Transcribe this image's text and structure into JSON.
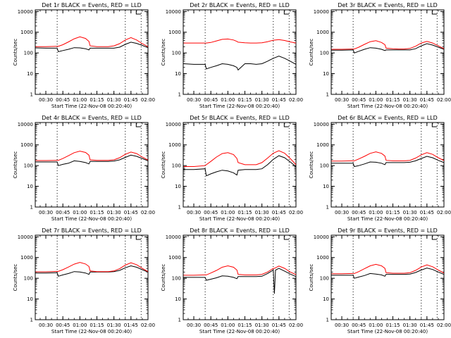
{
  "figure": {
    "x_tick_labels": [
      "00:30",
      "00:45",
      "01:00",
      "01:15",
      "01:30",
      "01:45",
      "02:00"
    ],
    "y_tick_labels": [
      "1",
      "10",
      "100",
      "1000",
      "10000"
    ],
    "colors": {
      "events": "#000000",
      "lld": "#ff0000",
      "axes": "#000000",
      "background": "#ffffff"
    }
  },
  "chart_data": [
    {
      "type": "line",
      "title": "Det 1r BLACK = Events, RED = LLD",
      "xlabel": "Start Time (22-Nov-08 00:20:40)",
      "ylabel": "Counts/sec",
      "y_scale": "log",
      "ylim": [
        1,
        12000
      ],
      "xlim": [
        "00:20:40",
        "02:00:00"
      ],
      "vlines": [
        "00:40",
        "01:40",
        "01:54"
      ],
      "x": [
        "00:21",
        "00:30",
        "00:40",
        "00:41",
        "00:45",
        "00:50",
        "00:55",
        "01:00",
        "01:05",
        "01:08",
        "01:09",
        "01:15",
        "01:20",
        "01:25",
        "01:30",
        "01:35",
        "01:40",
        "01:45",
        "01:50",
        "01:55",
        "02:00"
      ],
      "series": [
        {
          "name": "Events",
          "values": [
            175,
            170,
            170,
            115,
            130,
            150,
            180,
            175,
            160,
            140,
            170,
            170,
            170,
            170,
            170,
            190,
            260,
            330,
            290,
            230,
            180
          ]
        },
        {
          "name": "LLD",
          "values": [
            200,
            200,
            210,
            210,
            250,
            340,
            480,
            600,
            500,
            360,
            220,
            200,
            200,
            200,
            220,
            280,
            420,
            550,
            420,
            280,
            200
          ]
        }
      ]
    },
    {
      "type": "line",
      "title": "Det 2r BLACK = Events, RED = LLD",
      "xlabel": "Start Time (22-Nov-08 00:20:40)",
      "ylabel": "Counts/sec",
      "y_scale": "log",
      "ylim": [
        1,
        12000
      ],
      "xlim": [
        "00:20:40",
        "02:00:00"
      ],
      "vlines": [
        "00:40",
        "01:40",
        "01:54"
      ],
      "x": [
        "00:21",
        "00:30",
        "00:40",
        "00:41",
        "00:45",
        "00:50",
        "00:55",
        "01:00",
        "01:05",
        "01:08",
        "01:09",
        "01:15",
        "01:20",
        "01:25",
        "01:30",
        "01:35",
        "01:40",
        "01:45",
        "01:50",
        "01:55",
        "02:00"
      ],
      "series": [
        {
          "name": "Events",
          "values": [
            30,
            28,
            28,
            17,
            20,
            24,
            30,
            28,
            24,
            20,
            15,
            30,
            30,
            28,
            30,
            40,
            55,
            70,
            55,
            40,
            28
          ]
        },
        {
          "name": "LLD",
          "values": [
            300,
            300,
            300,
            300,
            320,
            380,
            450,
            470,
            420,
            360,
            330,
            310,
            300,
            300,
            310,
            350,
            410,
            440,
            400,
            340,
            300
          ]
        }
      ]
    },
    {
      "type": "line",
      "title": "Det 3r BLACK = Events, RED = LLD",
      "xlabel": "Start Time (22-Nov-08 00:20:40)",
      "ylabel": "Counts/sec",
      "y_scale": "log",
      "ylim": [
        1,
        12000
      ],
      "xlim": [
        "00:20:40",
        "02:00:00"
      ],
      "vlines": [
        "00:40",
        "01:40",
        "01:54"
      ],
      "x": [
        "00:21",
        "00:30",
        "00:40",
        "00:41",
        "00:45",
        "00:50",
        "00:55",
        "01:00",
        "01:05",
        "01:08",
        "01:09",
        "01:15",
        "01:20",
        "01:25",
        "01:30",
        "01:35",
        "01:40",
        "01:45",
        "01:50",
        "01:55",
        "02:00"
      ],
      "series": [
        {
          "name": "Events",
          "values": [
            135,
            135,
            140,
            100,
            120,
            150,
            180,
            170,
            150,
            130,
            140,
            140,
            140,
            140,
            140,
            160,
            220,
            280,
            240,
            190,
            150
          ]
        },
        {
          "name": "LLD",
          "values": [
            150,
            150,
            155,
            155,
            190,
            260,
            350,
            390,
            320,
            250,
            170,
            160,
            155,
            155,
            165,
            210,
            300,
            360,
            300,
            220,
            160
          ]
        }
      ]
    },
    {
      "type": "line",
      "title": "Det 4r BLACK = Events, RED = LLD",
      "xlabel": "Start Time (22-Nov-08 00:20:40)",
      "ylabel": "Counts/sec",
      "y_scale": "log",
      "ylim": [
        1,
        12000
      ],
      "xlim": [
        "00:20:40",
        "02:00:00"
      ],
      "vlines": [
        "00:40",
        "01:40",
        "01:54"
      ],
      "x": [
        "00:21",
        "00:30",
        "00:40",
        "00:41",
        "00:45",
        "00:50",
        "00:55",
        "01:00",
        "01:05",
        "01:08",
        "01:09",
        "01:15",
        "01:20",
        "01:25",
        "01:30",
        "01:35",
        "01:40",
        "01:45",
        "01:50",
        "01:55",
        "02:00"
      ],
      "series": [
        {
          "name": "Events",
          "values": [
            150,
            150,
            150,
            100,
            115,
            130,
            170,
            160,
            140,
            120,
            160,
            160,
            160,
            160,
            165,
            190,
            250,
            320,
            280,
            220,
            170
          ]
        },
        {
          "name": "LLD",
          "values": [
            175,
            175,
            180,
            180,
            220,
            300,
            420,
            500,
            430,
            320,
            190,
            180,
            180,
            180,
            190,
            240,
            350,
            450,
            380,
            260,
            185
          ]
        }
      ]
    },
    {
      "type": "line",
      "title": "Det 5r BLACK = Events, RED = LLD",
      "xlabel": "Start Time (22-Nov-08 00:20:40)",
      "ylabel": "Counts/sec",
      "y_scale": "log",
      "ylim": [
        1,
        12000
      ],
      "xlim": [
        "00:20:40",
        "02:00:00"
      ],
      "vlines": [
        "00:40",
        "01:40",
        "01:54"
      ],
      "x": [
        "00:21",
        "00:30",
        "00:40",
        "00:41",
        "00:45",
        "00:50",
        "00:55",
        "01:00",
        "01:05",
        "01:08",
        "01:09",
        "01:15",
        "01:20",
        "01:25",
        "01:30",
        "01:35",
        "01:40",
        "01:45",
        "01:50",
        "01:55",
        "02:00"
      ],
      "series": [
        {
          "name": "Events",
          "values": [
            65,
            65,
            70,
            32,
            40,
            50,
            60,
            55,
            45,
            35,
            60,
            65,
            65,
            65,
            70,
            110,
            200,
            300,
            240,
            150,
            90
          ]
        },
        {
          "name": "LLD",
          "values": [
            90,
            90,
            100,
            110,
            160,
            260,
            380,
            420,
            340,
            220,
            140,
            110,
            110,
            110,
            140,
            230,
            400,
            520,
            400,
            220,
            110
          ]
        }
      ]
    },
    {
      "type": "line",
      "title": "Det 6r BLACK = Events, RED = LLD",
      "xlabel": "Start Time (22-Nov-08 00:20:40)",
      "ylabel": "Counts/sec",
      "y_scale": "log",
      "ylim": [
        1,
        12000
      ],
      "xlim": [
        "00:20:40",
        "02:00:00"
      ],
      "vlines": [
        "00:40",
        "01:40",
        "01:54"
      ],
      "x": [
        "00:21",
        "00:30",
        "00:40",
        "00:41",
        "00:45",
        "00:50",
        "00:55",
        "01:00",
        "01:05",
        "01:08",
        "01:09",
        "01:15",
        "01:20",
        "01:25",
        "01:30",
        "01:35",
        "01:40",
        "01:45",
        "01:50",
        "01:55",
        "02:00"
      ],
      "series": [
        {
          "name": "Events",
          "values": [
            130,
            130,
            130,
            90,
            100,
            120,
            150,
            145,
            130,
            110,
            140,
            140,
            140,
            140,
            145,
            170,
            220,
            280,
            240,
            180,
            140
          ]
        },
        {
          "name": "LLD",
          "values": [
            165,
            165,
            170,
            170,
            210,
            280,
            390,
            460,
            390,
            290,
            180,
            170,
            170,
            170,
            180,
            230,
            330,
            420,
            350,
            240,
            175
          ]
        }
      ]
    },
    {
      "type": "line",
      "title": "Det 7r BLACK = Events, RED = LLD",
      "xlabel": "Start Time (22-Nov-08 00:20:40)",
      "ylabel": "Counts/sec",
      "y_scale": "log",
      "ylim": [
        1,
        12000
      ],
      "xlim": [
        "00:20:40",
        "02:00:00"
      ],
      "vlines": [
        "00:40",
        "01:40",
        "01:54"
      ],
      "x": [
        "00:21",
        "00:30",
        "00:40",
        "00:41",
        "00:45",
        "00:50",
        "00:55",
        "01:00",
        "01:05",
        "01:08",
        "01:09",
        "01:15",
        "01:20",
        "01:25",
        "01:30",
        "01:35",
        "01:40",
        "01:45",
        "01:50",
        "01:55",
        "02:00"
      ],
      "series": [
        {
          "name": "Events",
          "values": [
            180,
            180,
            185,
            125,
            145,
            170,
            210,
            200,
            180,
            155,
            200,
            200,
            200,
            200,
            210,
            240,
            320,
            400,
            340,
            260,
            200
          ]
        },
        {
          "name": "LLD",
          "values": [
            205,
            205,
            215,
            215,
            260,
            350,
            480,
            580,
            490,
            370,
            225,
            210,
            210,
            210,
            225,
            290,
            430,
            560,
            450,
            300,
            210
          ]
        }
      ]
    },
    {
      "type": "line",
      "title": "Det 8r BLACK = Events, RED = LLD",
      "xlabel": "Start Time (22-Nov-08 00:20:40)",
      "ylabel": "Counts/sec",
      "y_scale": "log",
      "ylim": [
        1,
        12000
      ],
      "xlim": [
        "00:20:40",
        "02:00:00"
      ],
      "vlines": [
        "00:40",
        "01:40",
        "01:54"
      ],
      "x": [
        "00:21",
        "00:30",
        "00:40",
        "00:41",
        "00:45",
        "00:50",
        "00:55",
        "01:00",
        "01:05",
        "01:08",
        "01:09",
        "01:15",
        "01:20",
        "01:25",
        "01:30",
        "01:35",
        "01:40",
        "01:41",
        "01:42",
        "01:45",
        "01:50",
        "01:55",
        "02:00"
      ],
      "series": [
        {
          "name": "Events",
          "values": [
            110,
            110,
            110,
            80,
            90,
            105,
            130,
            125,
            110,
            95,
            120,
            120,
            120,
            120,
            125,
            170,
            250,
            18,
            250,
            300,
            220,
            160,
            120
          ]
        },
        {
          "name": "LLD",
          "values": [
            140,
            140,
            145,
            145,
            180,
            240,
            340,
            400,
            340,
            250,
            155,
            145,
            145,
            145,
            155,
            200,
            300,
            300,
            320,
            390,
            300,
            200,
            150
          ]
        }
      ]
    },
    {
      "type": "line",
      "title": "Det 9r BLACK = Events, RED = LLD",
      "xlabel": "Start Time (22-Nov-08 00:20:40)",
      "ylabel": "Counts/sec",
      "y_scale": "log",
      "ylim": [
        1,
        12000
      ],
      "xlim": [
        "00:20:40",
        "02:00:00"
      ],
      "vlines": [
        "00:40",
        "01:40",
        "01:54"
      ],
      "x": [
        "00:21",
        "00:30",
        "00:40",
        "00:41",
        "00:45",
        "00:50",
        "00:55",
        "01:00",
        "01:05",
        "01:08",
        "01:09",
        "01:15",
        "01:20",
        "01:25",
        "01:30",
        "01:35",
        "01:40",
        "01:45",
        "01:50",
        "01:55",
        "02:00"
      ],
      "series": [
        {
          "name": "Events",
          "values": [
            140,
            140,
            140,
            100,
            115,
            135,
            170,
            160,
            145,
            125,
            155,
            155,
            155,
            155,
            160,
            190,
            250,
            310,
            265,
            200,
            155
          ]
        },
        {
          "name": "LLD",
          "values": [
            165,
            165,
            170,
            170,
            210,
            290,
            400,
            470,
            400,
            300,
            185,
            175,
            175,
            175,
            185,
            240,
            350,
            440,
            360,
            250,
            180
          ]
        }
      ]
    }
  ]
}
